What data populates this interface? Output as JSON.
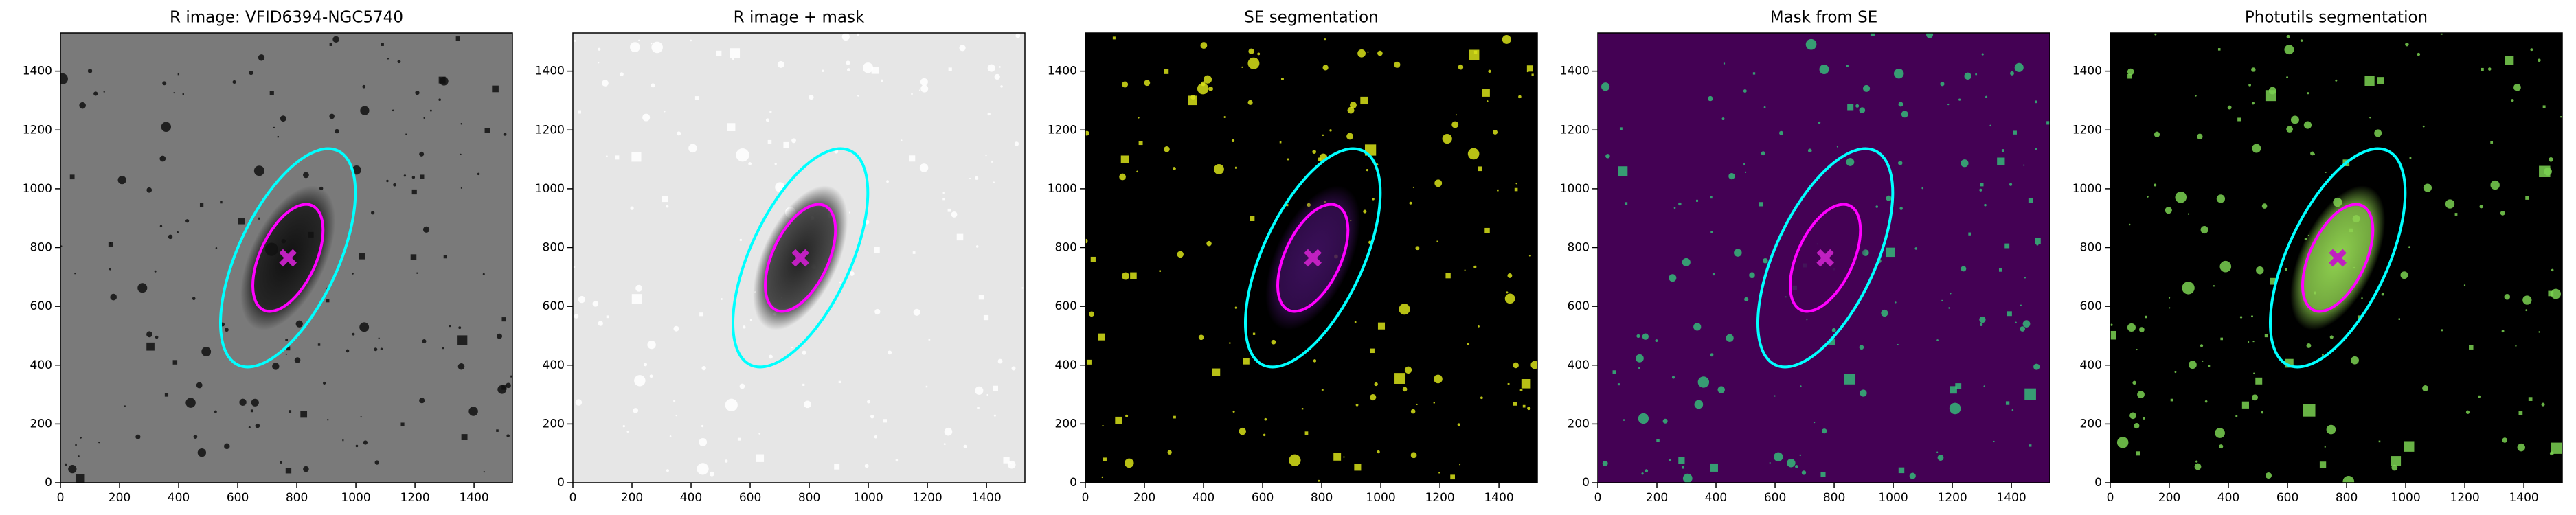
{
  "chart_data": [
    {
      "type": "image",
      "title": "R image: VFID6394-NGC5740",
      "background": "#7a7a7a",
      "blob_color": "#111111",
      "star_color": "#111111",
      "xlim": [
        0,
        1530
      ],
      "ylim": [
        0,
        1530
      ],
      "xticks": [
        0,
        200,
        400,
        600,
        800,
        1000,
        1200,
        1400
      ],
      "yticks": [
        0,
        200,
        400,
        600,
        800,
        1000,
        1200,
        1400
      ],
      "ellipses": [
        {
          "color": "#00ffff",
          "x": 770,
          "y": 765,
          "semi_major": 400,
          "semi_minor": 170,
          "angle": 65
        },
        {
          "color": "#ff00ff",
          "x": 770,
          "y": 765,
          "semi_major": 195,
          "semi_minor": 95,
          "angle": 65
        }
      ],
      "center": {
        "x": 770,
        "y": 765,
        "color": "#c020c0"
      }
    },
    {
      "type": "image",
      "title": "R image + mask",
      "background": "#e6e6e6",
      "blob_color": "#222222",
      "star_color": "#ffffff",
      "xlim": [
        0,
        1530
      ],
      "ylim": [
        0,
        1530
      ],
      "xticks": [
        0,
        200,
        400,
        600,
        800,
        1000,
        1200,
        1400
      ],
      "yticks": [
        0,
        200,
        400,
        600,
        800,
        1000,
        1200,
        1400
      ],
      "ellipses": [
        {
          "color": "#00ffff",
          "x": 770,
          "y": 765,
          "semi_major": 400,
          "semi_minor": 170,
          "angle": 65
        },
        {
          "color": "#ff00ff",
          "x": 770,
          "y": 765,
          "semi_major": 195,
          "semi_minor": 95,
          "angle": 65
        }
      ],
      "center": {
        "x": 770,
        "y": 765,
        "color": "#c020c0"
      }
    },
    {
      "type": "image",
      "title": "SE segmentation",
      "background": "#000000",
      "blob_color": "#3b0f5a",
      "star_color": "#d8e219",
      "xlim": [
        0,
        1530
      ],
      "ylim": [
        0,
        1530
      ],
      "xticks": [
        0,
        200,
        400,
        600,
        800,
        1000,
        1200,
        1400
      ],
      "yticks": [
        0,
        200,
        400,
        600,
        800,
        1000,
        1200,
        1400
      ],
      "ellipses": [
        {
          "color": "#00ffff",
          "x": 770,
          "y": 765,
          "semi_major": 400,
          "semi_minor": 170,
          "angle": 65
        },
        {
          "color": "#ff00ff",
          "x": 770,
          "y": 765,
          "semi_major": 195,
          "semi_minor": 95,
          "angle": 65
        }
      ],
      "center": {
        "x": 770,
        "y": 765,
        "color": "#c020c0"
      }
    },
    {
      "type": "image",
      "title": "Mask from SE",
      "background": "#440154",
      "blob_color": "#440154",
      "star_color": "#35b779",
      "xlim": [
        0,
        1530
      ],
      "ylim": [
        0,
        1530
      ],
      "xticks": [
        0,
        200,
        400,
        600,
        800,
        1000,
        1200,
        1400
      ],
      "yticks": [
        0,
        200,
        400,
        600,
        800,
        1000,
        1200,
        1400
      ],
      "ellipses": [
        {
          "color": "#00ffff",
          "x": 770,
          "y": 765,
          "semi_major": 400,
          "semi_minor": 170,
          "angle": 65
        },
        {
          "color": "#ff00ff",
          "x": 770,
          "y": 765,
          "semi_major": 195,
          "semi_minor": 95,
          "angle": 65
        }
      ],
      "center": {
        "x": 770,
        "y": 765,
        "color": "#c020c0"
      }
    },
    {
      "type": "image",
      "title": "Photutils segmentation",
      "background": "#000000",
      "blob_color": "#8fd14f",
      "star_color": "#7ad151",
      "xlim": [
        0,
        1530
      ],
      "ylim": [
        0,
        1530
      ],
      "xticks": [
        0,
        200,
        400,
        600,
        800,
        1000,
        1200,
        1400
      ],
      "yticks": [
        0,
        200,
        400,
        600,
        800,
        1000,
        1200,
        1400
      ],
      "ellipses": [
        {
          "color": "#00ffff",
          "x": 770,
          "y": 765,
          "semi_major": 400,
          "semi_minor": 170,
          "angle": 65
        },
        {
          "color": "#ff00ff",
          "x": 770,
          "y": 765,
          "semi_major": 195,
          "semi_minor": 95,
          "angle": 65
        }
      ],
      "center": {
        "x": 770,
        "y": 765,
        "color": "#c020c0"
      }
    }
  ]
}
